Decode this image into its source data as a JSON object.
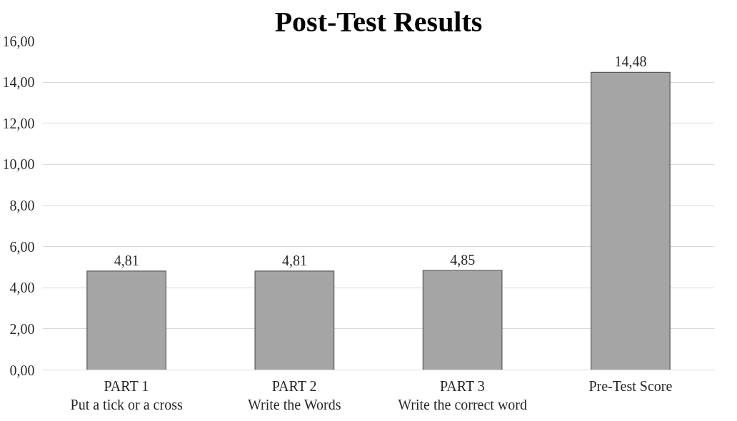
{
  "chart_data": {
    "type": "bar",
    "title": "Post-Test Results",
    "categories": [
      "PART 1\nPut a tick or a cross",
      "PART 2\nWrite the Words",
      "PART 3\nWrite the correct word",
      "Pre-Test Score"
    ],
    "values": [
      4.81,
      4.81,
      4.85,
      14.48
    ],
    "value_labels": [
      "4,81",
      "4,81",
      "4,85",
      "14,48"
    ],
    "color": "#a5a5a5",
    "ylim": [
      0,
      16
    ],
    "yticks": [
      {
        "value": 0,
        "label": "0,00"
      },
      {
        "value": 2,
        "label": "2,00"
      },
      {
        "value": 4,
        "label": "4,00"
      },
      {
        "value": 6,
        "label": "6,00"
      },
      {
        "value": 8,
        "label": "8,00"
      },
      {
        "value": 10,
        "label": "10,00"
      },
      {
        "value": 12,
        "label": "12,00"
      },
      {
        "value": 14,
        "label": "14,00"
      },
      {
        "value": 16,
        "label": "16,00"
      }
    ],
    "grid": "y"
  }
}
